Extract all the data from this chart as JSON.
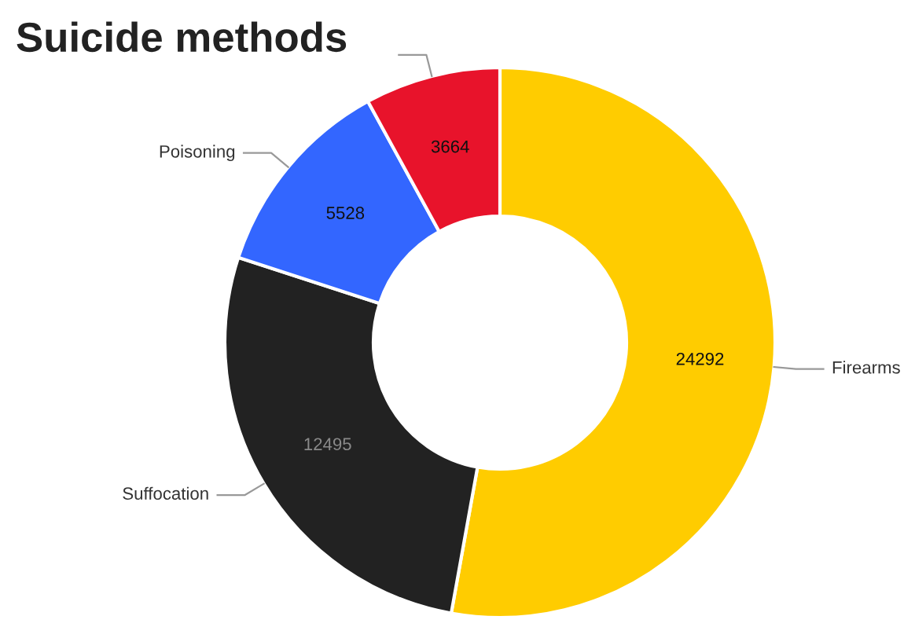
{
  "chart_data": {
    "type": "donut",
    "title": "Suicide methods",
    "categories": [
      "Firearms",
      "Suffocation",
      "Poisoning",
      null
    ],
    "values": [
      24292,
      12495,
      5528,
      3664
    ],
    "colors": [
      "#ffcc00",
      "#222222",
      "#3366ff",
      "#e8132b"
    ],
    "data_labels": true,
    "legend": false
  }
}
